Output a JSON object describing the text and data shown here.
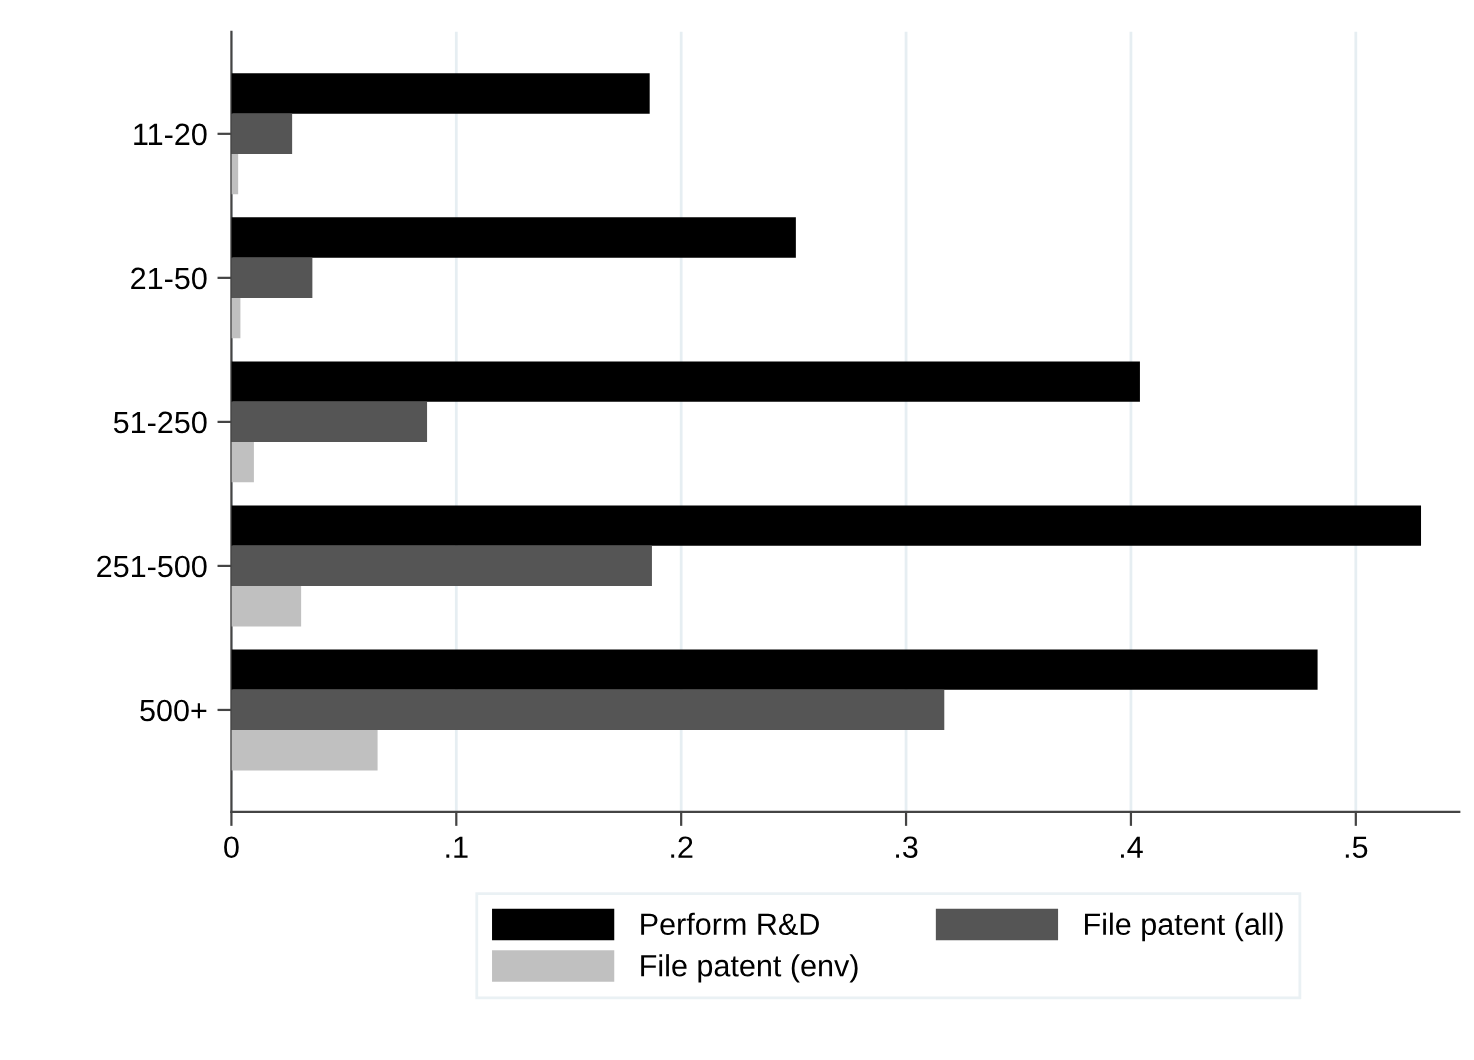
{
  "chart_data": {
    "type": "bar",
    "orientation": "horizontal",
    "categories": [
      "11-20",
      "21-50",
      "51-250",
      "251-500",
      "500+"
    ],
    "series": [
      {
        "name": "Perform R&D",
        "color": "#000000",
        "values": [
          0.186,
          0.251,
          0.404,
          0.529,
          0.483
        ]
      },
      {
        "name": "File patent (all)",
        "color": "#555555",
        "values": [
          0.027,
          0.036,
          0.087,
          0.187,
          0.317
        ]
      },
      {
        "name": "File patent (env)",
        "color": "#c0c0c0",
        "values": [
          0.003,
          0.004,
          0.01,
          0.031,
          0.065
        ]
      }
    ],
    "xlim": [
      0,
      0.546
    ],
    "xticks": [
      0,
      {
        "value": 0.1,
        "label": ".1"
      },
      {
        "value": 0.2,
        "label": ".2"
      },
      {
        "value": 0.3,
        "label": ".3"
      },
      {
        "value": 0.4,
        "label": ".4"
      },
      {
        "value": 0.5,
        "label": ".5"
      }
    ],
    "grid": "x",
    "legend": "bottom"
  }
}
